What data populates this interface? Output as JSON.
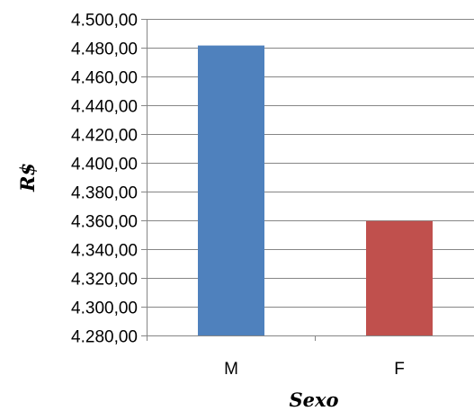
{
  "chart_data": {
    "type": "bar",
    "categories": [
      "M",
      "F"
    ],
    "values": [
      4481.5,
      4359.5
    ],
    "bar_colors": [
      "#4f81bd",
      "#c0504d"
    ],
    "xlabel": "Sexo",
    "ylabel": "R$",
    "ylim": [
      4280,
      4500
    ],
    "y_ticks": [
      "4.500,00",
      "4.480,00",
      "4.460,00",
      "4.440,00",
      "4.420,00",
      "4.400,00",
      "4.380,00",
      "4.360,00",
      "4.340,00",
      "4.320,00",
      "4.300,00",
      "4.280,00"
    ],
    "grid": true,
    "legend": "none"
  }
}
